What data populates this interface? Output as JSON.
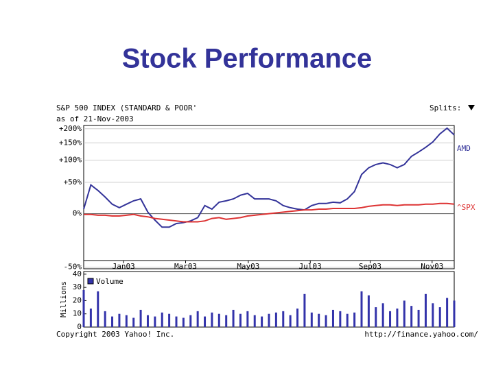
{
  "slide_title": "Stock Performance",
  "footer_left": "Copyright 2003 Yahoo! Inc.",
  "footer_right": "http://finance.yahoo.com/",
  "chart_data": [
    {
      "type": "line",
      "title": "S&P 500 INDEX (STANDARD & POOR'",
      "subtitle": "as of 21-Nov-2003",
      "annotation": "Splits:",
      "yscale": "log",
      "grid": true,
      "x": [
        0,
        1,
        2,
        3,
        4,
        5,
        6,
        7,
        8,
        9,
        10,
        11,
        12,
        13,
        14,
        15,
        16,
        17,
        18,
        19,
        20,
        21,
        22,
        23,
        24,
        25,
        26,
        27,
        28,
        29,
        30,
        31,
        32,
        33,
        34,
        35,
        36,
        37,
        38,
        39,
        40,
        41,
        42,
        43,
        44,
        45,
        46,
        47,
        48,
        49,
        50,
        51,
        52
      ],
      "xlim": [
        0,
        52
      ],
      "xticks": [
        {
          "value": 5.6,
          "label": "Jan03"
        },
        {
          "value": 14.3,
          "label": "Mar03"
        },
        {
          "value": 23.1,
          "label": "May03"
        },
        {
          "value": 31.8,
          "label": "Jul03"
        },
        {
          "value": 40.2,
          "label": "Sep03"
        },
        {
          "value": 48.9,
          "label": "Nov03"
        }
      ],
      "ylim": [
        -51,
        213
      ],
      "yticks": [
        {
          "value": -50,
          "label": "-50%"
        },
        {
          "value": 0,
          "label": "0%"
        },
        {
          "value": 50,
          "label": "+50%"
        },
        {
          "value": 100,
          "label": "+100%"
        },
        {
          "value": 150,
          "label": "+150%"
        },
        {
          "value": 200,
          "label": "+200%"
        }
      ],
      "series": [
        {
          "name": "AMD",
          "color": "#333399",
          "values": [
            6,
            45,
            35,
            24,
            13,
            8,
            13,
            18,
            21,
            2,
            -8,
            -16,
            -16,
            -12,
            -11,
            -9,
            -5,
            11,
            6,
            16,
            18,
            21,
            27,
            30,
            21,
            21,
            21,
            18,
            11,
            8,
            6,
            5,
            11,
            14,
            14,
            16,
            15,
            21,
            33,
            66,
            81,
            89,
            93,
            89,
            81,
            89,
            110,
            122,
            136,
            153,
            181,
            202,
            177
          ]
        },
        {
          "name": "^SPX",
          "color": "#dd3333",
          "values": [
            -1,
            -1,
            -2,
            -2,
            -3,
            -3,
            -2,
            -1,
            -3,
            -4,
            -6,
            -7,
            -8,
            -9,
            -10,
            -10,
            -10,
            -9,
            -6,
            -5,
            -7,
            -6,
            -5,
            -3,
            -2,
            -1,
            0,
            1,
            2,
            3,
            4,
            5,
            5,
            6,
            6,
            7,
            7,
            7,
            7,
            8,
            10,
            11,
            12,
            12,
            11,
            12,
            12,
            12,
            13,
            13,
            14,
            14,
            13
          ]
        }
      ]
    },
    {
      "type": "bar",
      "ylabel": "Millions",
      "x": [
        0,
        1,
        2,
        3,
        4,
        5,
        6,
        7,
        8,
        9,
        10,
        11,
        12,
        13,
        14,
        15,
        16,
        17,
        18,
        19,
        20,
        21,
        22,
        23,
        24,
        25,
        26,
        27,
        28,
        29,
        30,
        31,
        32,
        33,
        34,
        35,
        36,
        37,
        38,
        39,
        40,
        41,
        42,
        43,
        44,
        45,
        46,
        47,
        48,
        49,
        50,
        51,
        52
      ],
      "xlim": [
        0,
        52
      ],
      "ylim": [
        0,
        42
      ],
      "yticks": [
        0,
        10,
        20,
        30,
        40
      ],
      "series": [
        {
          "name": "Volume",
          "color": "#3333aa",
          "values": [
            28,
            14,
            27,
            12,
            8,
            10,
            9,
            7,
            13,
            9,
            8,
            11,
            10,
            8,
            7,
            9,
            12,
            8,
            11,
            10,
            9,
            13,
            10,
            12,
            9,
            8,
            10,
            11,
            12,
            9,
            14,
            25,
            11,
            10,
            9,
            13,
            12,
            10,
            11,
            27,
            24,
            15,
            18,
            12,
            14,
            20,
            16,
            13,
            25,
            18,
            15,
            22,
            20
          ]
        }
      ]
    }
  ]
}
